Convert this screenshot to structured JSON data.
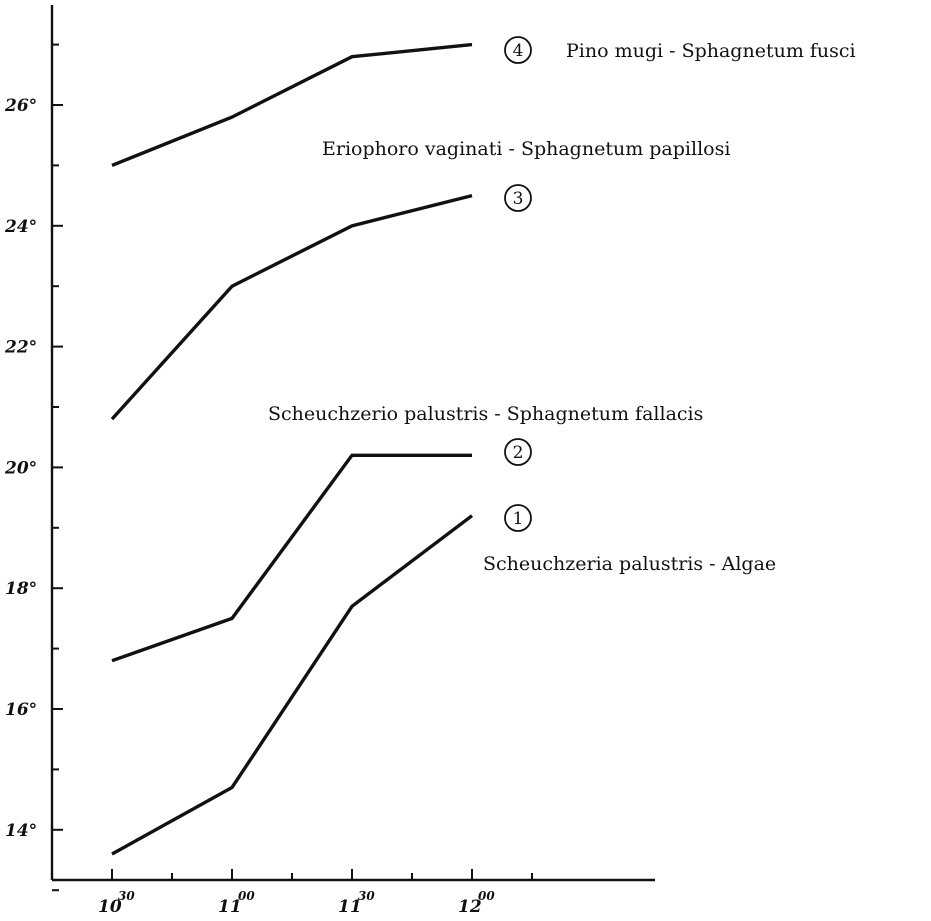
{
  "chart_data": {
    "type": "line",
    "title": "",
    "xlabel": "",
    "ylabel": "",
    "x": [
      "10:30",
      "11:00",
      "11:30",
      "12:00"
    ],
    "x_tick_labels": [
      {
        "main": "10",
        "sup": "30"
      },
      {
        "main": "11",
        "sup": "00"
      },
      {
        "main": "11",
        "sup": "30"
      },
      {
        "main": "12",
        "sup": "00"
      }
    ],
    "y_tick_values": [
      14,
      16,
      18,
      20,
      22,
      24,
      26
    ],
    "y_tick_labels": [
      "14°",
      "16°",
      "18°",
      "20°",
      "22°",
      "24°",
      "26°"
    ],
    "xlim": [
      "10:00",
      "13:00"
    ],
    "ylim": [
      12.2,
      27.7
    ],
    "grid": false,
    "legend": "inline labels at right of lines",
    "series": [
      {
        "number": "1",
        "name": "Scheuchzeria palustris - Algae",
        "values": [
          13.6,
          14.7,
          17.7,
          19.2
        ]
      },
      {
        "number": "2",
        "name": "Scheuchzerio palustris - Sphagnetum fallacis",
        "values": [
          16.8,
          17.5,
          20.2,
          20.2
        ]
      },
      {
        "number": "3",
        "name": "Eriophoro vaginati - Sphagnetum papillosi",
        "values": [
          20.8,
          23.0,
          24.0,
          24.5
        ]
      },
      {
        "number": "4",
        "name": "Pino mugi - Sphagnetum fusci",
        "values": [
          25.0,
          25.8,
          26.8,
          27.0
        ]
      }
    ]
  }
}
